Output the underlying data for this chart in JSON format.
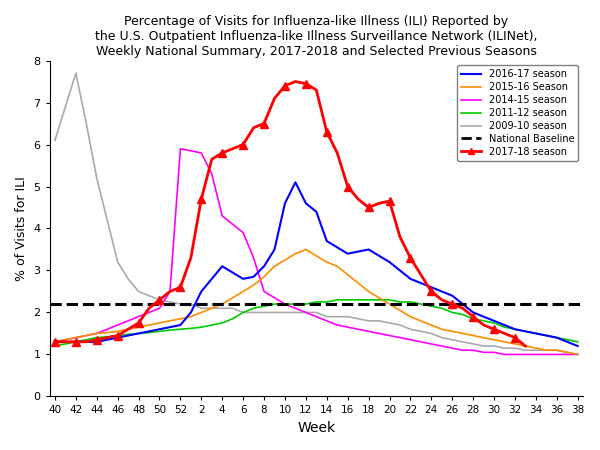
{
  "title": "Percentage of Visits for Influenza-like Illness (ILI) Reported by\nthe U.S. Outpatient Influenza-like Illness Surveillance Network (ILINet),\nWeekly National Summary, 2017-2018 and Selected Previous Seasons",
  "xlabel": "Week",
  "ylabel": "% of Visits for ILI",
  "ylim": [
    0,
    8
  ],
  "yticks": [
    0,
    1,
    2,
    3,
    4,
    5,
    6,
    7,
    8
  ],
  "national_baseline": 2.2,
  "tick_labels": [
    40,
    42,
    44,
    46,
    48,
    50,
    52,
    2,
    4,
    6,
    8,
    10,
    12,
    14,
    16,
    18,
    20,
    22,
    24,
    26,
    28,
    30,
    32,
    34,
    36,
    38
  ],
  "tick_positions": [
    0,
    2,
    4,
    6,
    8,
    10,
    12,
    14,
    16,
    18,
    20,
    22,
    24,
    26,
    28,
    30,
    32,
    34,
    36,
    38,
    40,
    42,
    44,
    46,
    48,
    50
  ],
  "season_2009_10": {
    "label": "2009-10 season",
    "color": "#AAAAAA",
    "x": [
      0,
      1,
      2,
      3,
      4,
      5,
      6,
      7,
      8,
      9,
      10,
      11,
      12,
      13,
      14,
      15,
      16,
      17,
      18,
      19,
      20,
      21,
      22,
      23,
      24,
      25,
      26,
      27,
      28,
      29,
      30,
      31,
      32,
      33,
      34,
      35,
      36,
      37,
      38,
      39,
      40,
      41,
      42,
      43,
      44,
      45,
      46,
      47,
      48,
      49,
      50
    ],
    "y": [
      6.1,
      6.9,
      7.7,
      6.5,
      5.2,
      4.2,
      3.2,
      2.8,
      2.5,
      2.4,
      2.3,
      2.25,
      2.2,
      2.2,
      2.1,
      2.1,
      2.1,
      2.1,
      2.0,
      2.0,
      2.0,
      2.0,
      2.0,
      2.0,
      2.0,
      2.0,
      1.9,
      1.9,
      1.9,
      1.85,
      1.8,
      1.8,
      1.75,
      1.7,
      1.6,
      1.55,
      1.5,
      1.4,
      1.35,
      1.3,
      1.25,
      1.2,
      1.2,
      1.15,
      1.15,
      1.1,
      1.1,
      1.1,
      1.1,
      1.05,
      1.0
    ]
  },
  "season_2014_15": {
    "label": "2014-15 season",
    "color": "#FF00FF",
    "x": [
      0,
      1,
      2,
      3,
      4,
      5,
      6,
      7,
      8,
      9,
      10,
      11,
      12,
      13,
      14,
      15,
      16,
      17,
      18,
      19,
      20,
      21,
      22,
      23,
      24,
      25,
      26,
      27,
      28,
      29,
      30,
      31,
      32,
      33,
      34,
      35,
      36,
      37,
      38,
      39,
      40,
      41,
      42,
      43,
      44,
      45,
      46,
      47,
      48,
      49,
      50
    ],
    "y": [
      1.3,
      1.35,
      1.4,
      1.45,
      1.5,
      1.6,
      1.7,
      1.8,
      1.9,
      2.0,
      2.1,
      2.5,
      5.9,
      5.85,
      5.8,
      5.3,
      4.3,
      4.1,
      3.9,
      3.3,
      2.5,
      2.35,
      2.2,
      2.1,
      2.0,
      1.9,
      1.8,
      1.7,
      1.65,
      1.6,
      1.55,
      1.5,
      1.45,
      1.4,
      1.35,
      1.3,
      1.25,
      1.2,
      1.15,
      1.1,
      1.1,
      1.05,
      1.05,
      1.0,
      1.0,
      1.0,
      1.0,
      1.0,
      1.0,
      1.0,
      1.0
    ]
  },
  "season_2011_12": {
    "label": "2011-12 season",
    "color": "#00CC00",
    "x": [
      0,
      1,
      2,
      3,
      4,
      5,
      6,
      7,
      8,
      9,
      10,
      11,
      12,
      13,
      14,
      15,
      16,
      17,
      18,
      19,
      20,
      21,
      22,
      23,
      24,
      25,
      26,
      27,
      28,
      29,
      30,
      31,
      32,
      33,
      34,
      35,
      36,
      37,
      38,
      39,
      40,
      41,
      42,
      43,
      44,
      45,
      46,
      47,
      48,
      49,
      50
    ],
    "y": [
      1.2,
      1.25,
      1.3,
      1.35,
      1.4,
      1.42,
      1.45,
      1.48,
      1.5,
      1.52,
      1.55,
      1.58,
      1.6,
      1.62,
      1.65,
      1.7,
      1.75,
      1.85,
      2.0,
      2.1,
      2.15,
      2.2,
      2.2,
      2.2,
      2.2,
      2.25,
      2.25,
      2.3,
      2.3,
      2.3,
      2.3,
      2.3,
      2.3,
      2.25,
      2.25,
      2.2,
      2.15,
      2.1,
      2.0,
      1.95,
      1.85,
      1.8,
      1.75,
      1.65,
      1.6,
      1.55,
      1.5,
      1.45,
      1.4,
      1.35,
      1.3
    ]
  },
  "season_2015_16": {
    "label": "2015-16 Season",
    "color": "#FF8C00",
    "x": [
      0,
      1,
      2,
      3,
      4,
      5,
      6,
      7,
      8,
      9,
      10,
      11,
      12,
      13,
      14,
      15,
      16,
      17,
      18,
      19,
      20,
      21,
      22,
      23,
      24,
      25,
      26,
      27,
      28,
      29,
      30,
      31,
      32,
      33,
      34,
      35,
      36,
      37,
      38,
      39,
      40,
      41,
      42,
      43,
      44,
      45,
      46,
      47,
      48,
      49,
      50
    ],
    "y": [
      1.3,
      1.35,
      1.4,
      1.45,
      1.5,
      1.52,
      1.55,
      1.6,
      1.65,
      1.7,
      1.75,
      1.8,
      1.85,
      1.9,
      2.0,
      2.1,
      2.2,
      2.35,
      2.5,
      2.65,
      2.85,
      3.1,
      3.25,
      3.4,
      3.5,
      3.35,
      3.2,
      3.1,
      2.9,
      2.7,
      2.5,
      2.35,
      2.2,
      2.05,
      1.9,
      1.8,
      1.7,
      1.6,
      1.55,
      1.5,
      1.45,
      1.4,
      1.35,
      1.3,
      1.25,
      1.2,
      1.15,
      1.1,
      1.1,
      1.05,
      1.0
    ]
  },
  "season_2016_17": {
    "label": "2016-17 season",
    "color": "#0000FF",
    "x": [
      0,
      1,
      2,
      3,
      4,
      5,
      6,
      7,
      8,
      9,
      10,
      11,
      12,
      13,
      14,
      15,
      16,
      17,
      18,
      19,
      20,
      21,
      22,
      23,
      24,
      25,
      26,
      27,
      28,
      29,
      30,
      31,
      32,
      33,
      34,
      35,
      36,
      37,
      38,
      39,
      40,
      41,
      42,
      43,
      44,
      45,
      46,
      47,
      48,
      49,
      50
    ],
    "y": [
      1.3,
      1.3,
      1.3,
      1.3,
      1.3,
      1.35,
      1.4,
      1.45,
      1.5,
      1.55,
      1.6,
      1.65,
      1.7,
      2.0,
      2.5,
      2.8,
      3.1,
      2.95,
      2.8,
      2.85,
      3.1,
      3.5,
      4.6,
      5.1,
      4.6,
      4.4,
      3.7,
      3.55,
      3.4,
      3.45,
      3.5,
      3.35,
      3.2,
      3.0,
      2.8,
      2.7,
      2.6,
      2.5,
      2.4,
      2.2,
      2.0,
      1.9,
      1.8,
      1.7,
      1.6,
      1.55,
      1.5,
      1.45,
      1.4,
      1.3,
      1.2
    ]
  },
  "season_2017_18": {
    "label": "2017-18 season",
    "color": "#FF0000",
    "x": [
      0,
      1,
      2,
      3,
      4,
      5,
      6,
      7,
      8,
      9,
      10,
      11,
      12,
      13,
      14,
      15,
      16,
      17,
      18,
      19,
      20,
      21,
      22,
      23,
      24,
      25,
      26,
      27,
      28,
      29,
      30,
      31,
      32,
      33,
      34,
      35,
      36,
      37,
      38,
      39,
      40,
      41,
      42,
      43,
      44,
      45
    ],
    "y": [
      1.3,
      1.3,
      1.3,
      1.3,
      1.35,
      1.4,
      1.45,
      1.6,
      1.75,
      2.1,
      2.3,
      2.5,
      2.6,
      3.3,
      4.7,
      5.65,
      5.8,
      5.9,
      6.0,
      6.4,
      6.5,
      7.1,
      7.4,
      7.5,
      7.45,
      7.3,
      6.3,
      5.8,
      5.0,
      4.7,
      4.5,
      4.6,
      4.65,
      3.8,
      3.3,
      2.9,
      2.5,
      2.3,
      2.2,
      2.1,
      1.9,
      1.7,
      1.6,
      1.5,
      1.4,
      1.2
    ],
    "marker_every": 2
  }
}
